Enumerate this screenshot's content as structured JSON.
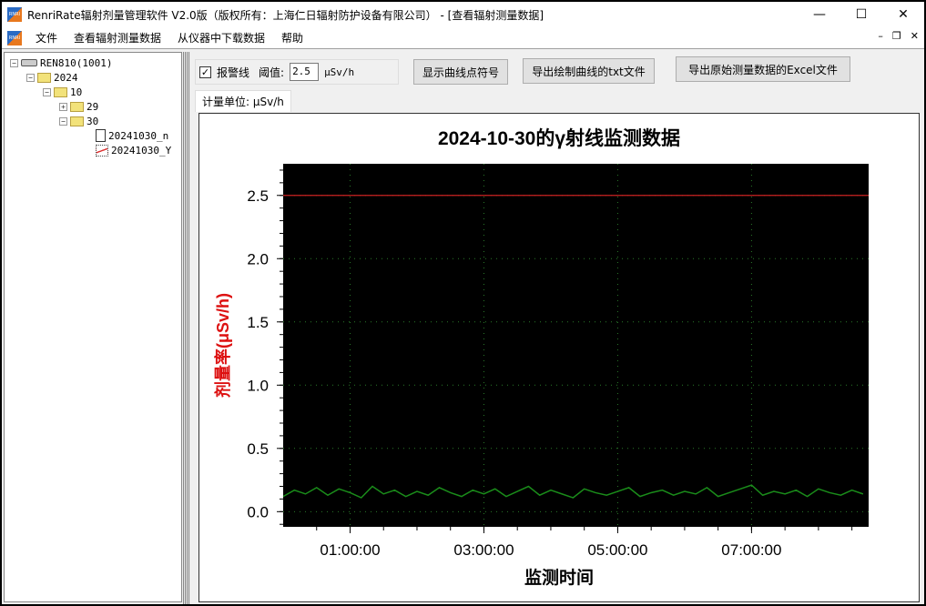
{
  "window": {
    "title": "RenriRate辐射剂量管理软件 V2.0版（版权所有：上海仁日辐射防护设备有限公司） - [查看辐射测量数据]",
    "icon": "renri-logo-icon"
  },
  "menu": [
    "文件",
    "查看辐射测量数据",
    "从仪器中下载数据",
    "帮助"
  ],
  "tree": {
    "root": "REN810(1001)",
    "year": "2024",
    "month": "10",
    "days": [
      "29",
      "30"
    ],
    "files": [
      "20241030_n",
      "20241030_Y"
    ]
  },
  "toolbar": {
    "alarm_label": "报警线",
    "alarm_checked": true,
    "threshold_label": "阈值:",
    "threshold_value": "2.5",
    "threshold_unit": "μSv/h",
    "show_symbols": "显示曲线点符号",
    "export_txt": "导出绘制曲线的txt文件",
    "export_excel": "导出原始测量数据的Excel文件"
  },
  "tab": {
    "label": "计量单位: μSv/h"
  },
  "colors": {
    "plot_bg": "#000000",
    "series": "#1a8c1a",
    "alarm_line": "#cc2222",
    "ylabel": "#dd1111"
  },
  "chart_data": {
    "type": "line",
    "title": "2024-10-30的γ射线监测数据",
    "xlabel": "监测时间",
    "ylabel": "剂量率(μSv/h)",
    "xlim": [
      "00:00:00",
      "08:45:00"
    ],
    "ylim": [
      -0.12,
      2.75
    ],
    "xticks": [
      "01:00:00",
      "03:00:00",
      "05:00:00",
      "07:00:00"
    ],
    "yticks": [
      "0.0",
      "0.5",
      "1.0",
      "1.5",
      "2.0",
      "2.5"
    ],
    "grid": true,
    "alarm_value": 2.5,
    "series": [
      {
        "points": [
          [
            "00:00",
            0.12
          ],
          [
            "00:10",
            0.17
          ],
          [
            "00:20",
            0.14
          ],
          [
            "00:30",
            0.19
          ],
          [
            "00:40",
            0.13
          ],
          [
            "00:50",
            0.18
          ],
          [
            "01:00",
            0.15
          ],
          [
            "01:10",
            0.11
          ],
          [
            "01:20",
            0.2
          ],
          [
            "01:30",
            0.14
          ],
          [
            "01:40",
            0.17
          ],
          [
            "01:50",
            0.12
          ],
          [
            "02:00",
            0.16
          ],
          [
            "02:10",
            0.13
          ],
          [
            "02:20",
            0.19
          ],
          [
            "02:30",
            0.15
          ],
          [
            "02:40",
            0.12
          ],
          [
            "02:50",
            0.17
          ],
          [
            "03:00",
            0.14
          ],
          [
            "03:10",
            0.18
          ],
          [
            "03:20",
            0.12
          ],
          [
            "03:30",
            0.16
          ],
          [
            "03:40",
            0.2
          ],
          [
            "03:50",
            0.13
          ],
          [
            "04:00",
            0.17
          ],
          [
            "04:10",
            0.14
          ],
          [
            "04:20",
            0.11
          ],
          [
            "04:30",
            0.18
          ],
          [
            "04:40",
            0.15
          ],
          [
            "04:50",
            0.13
          ],
          [
            "05:00",
            0.16
          ],
          [
            "05:10",
            0.19
          ],
          [
            "05:20",
            0.12
          ],
          [
            "05:30",
            0.15
          ],
          [
            "05:40",
            0.17
          ],
          [
            "05:50",
            0.13
          ],
          [
            "06:00",
            0.16
          ],
          [
            "06:10",
            0.14
          ],
          [
            "06:20",
            0.19
          ],
          [
            "06:30",
            0.12
          ],
          [
            "06:40",
            0.15
          ],
          [
            "06:50",
            0.18
          ],
          [
            "07:00",
            0.21
          ],
          [
            "07:10",
            0.13
          ],
          [
            "07:20",
            0.16
          ],
          [
            "07:30",
            0.14
          ],
          [
            "07:40",
            0.17
          ],
          [
            "07:50",
            0.12
          ],
          [
            "08:00",
            0.18
          ],
          [
            "08:10",
            0.15
          ],
          [
            "08:20",
            0.13
          ],
          [
            "08:30",
            0.17
          ],
          [
            "08:40",
            0.14
          ]
        ]
      }
    ]
  }
}
